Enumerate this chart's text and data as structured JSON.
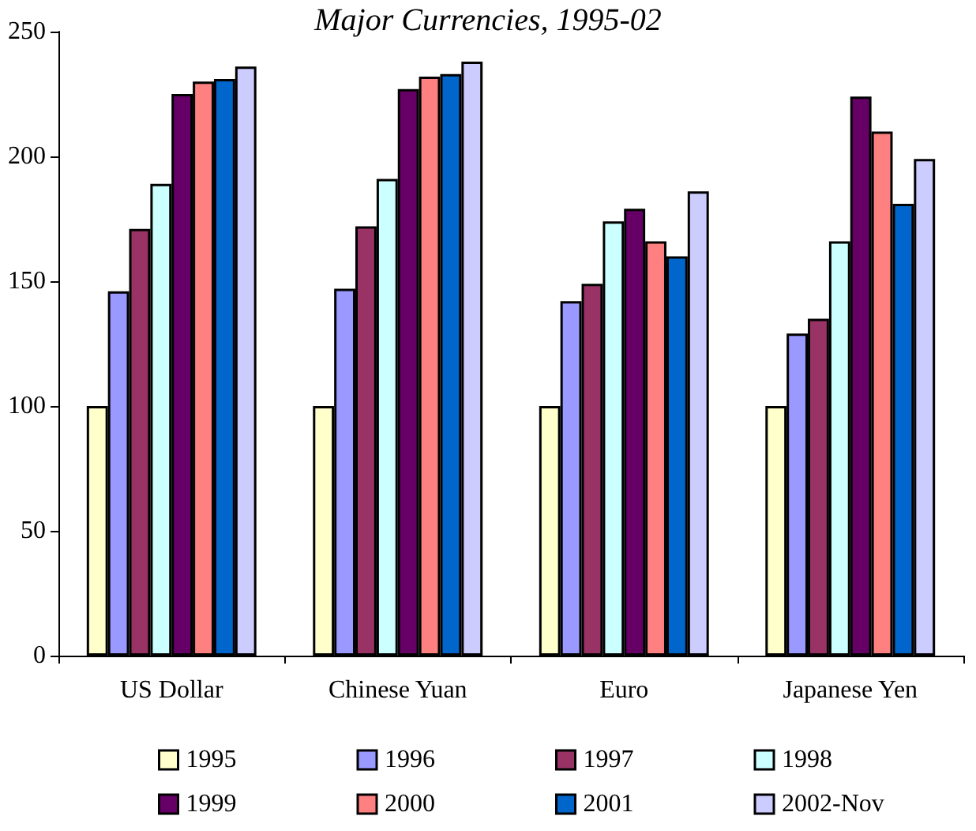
{
  "chart_data": {
    "type": "bar",
    "title": "Major Currencies, 1995-02",
    "categories": [
      "US Dollar",
      "Chinese Yuan",
      "Euro",
      "Japanese Yen"
    ],
    "series": [
      {
        "name": "1995",
        "color": "#ffffcc",
        "values": [
          100,
          100,
          100,
          100
        ]
      },
      {
        "name": "1996",
        "color": "#9999ff",
        "values": [
          146,
          147,
          142,
          129
        ]
      },
      {
        "name": "1997",
        "color": "#993366",
        "values": [
          171,
          172,
          149,
          135
        ]
      },
      {
        "name": "1998",
        "color": "#ccffff",
        "values": [
          189,
          191,
          174,
          166
        ]
      },
      {
        "name": "1999",
        "color": "#660066",
        "values": [
          225,
          227,
          179,
          224
        ]
      },
      {
        "name": "2000",
        "color": "#ff8080",
        "values": [
          230,
          232,
          166,
          210
        ]
      },
      {
        "name": "2001",
        "color": "#0066cc",
        "values": [
          231,
          233,
          160,
          181
        ]
      },
      {
        "name": "2002-Nov",
        "color": "#ccccff",
        "values": [
          236,
          238,
          186,
          199
        ]
      }
    ],
    "ylim": [
      0,
      250
    ],
    "yticks": [
      0,
      50,
      100,
      150,
      200,
      250
    ],
    "grid": false,
    "legend": "bottom"
  }
}
